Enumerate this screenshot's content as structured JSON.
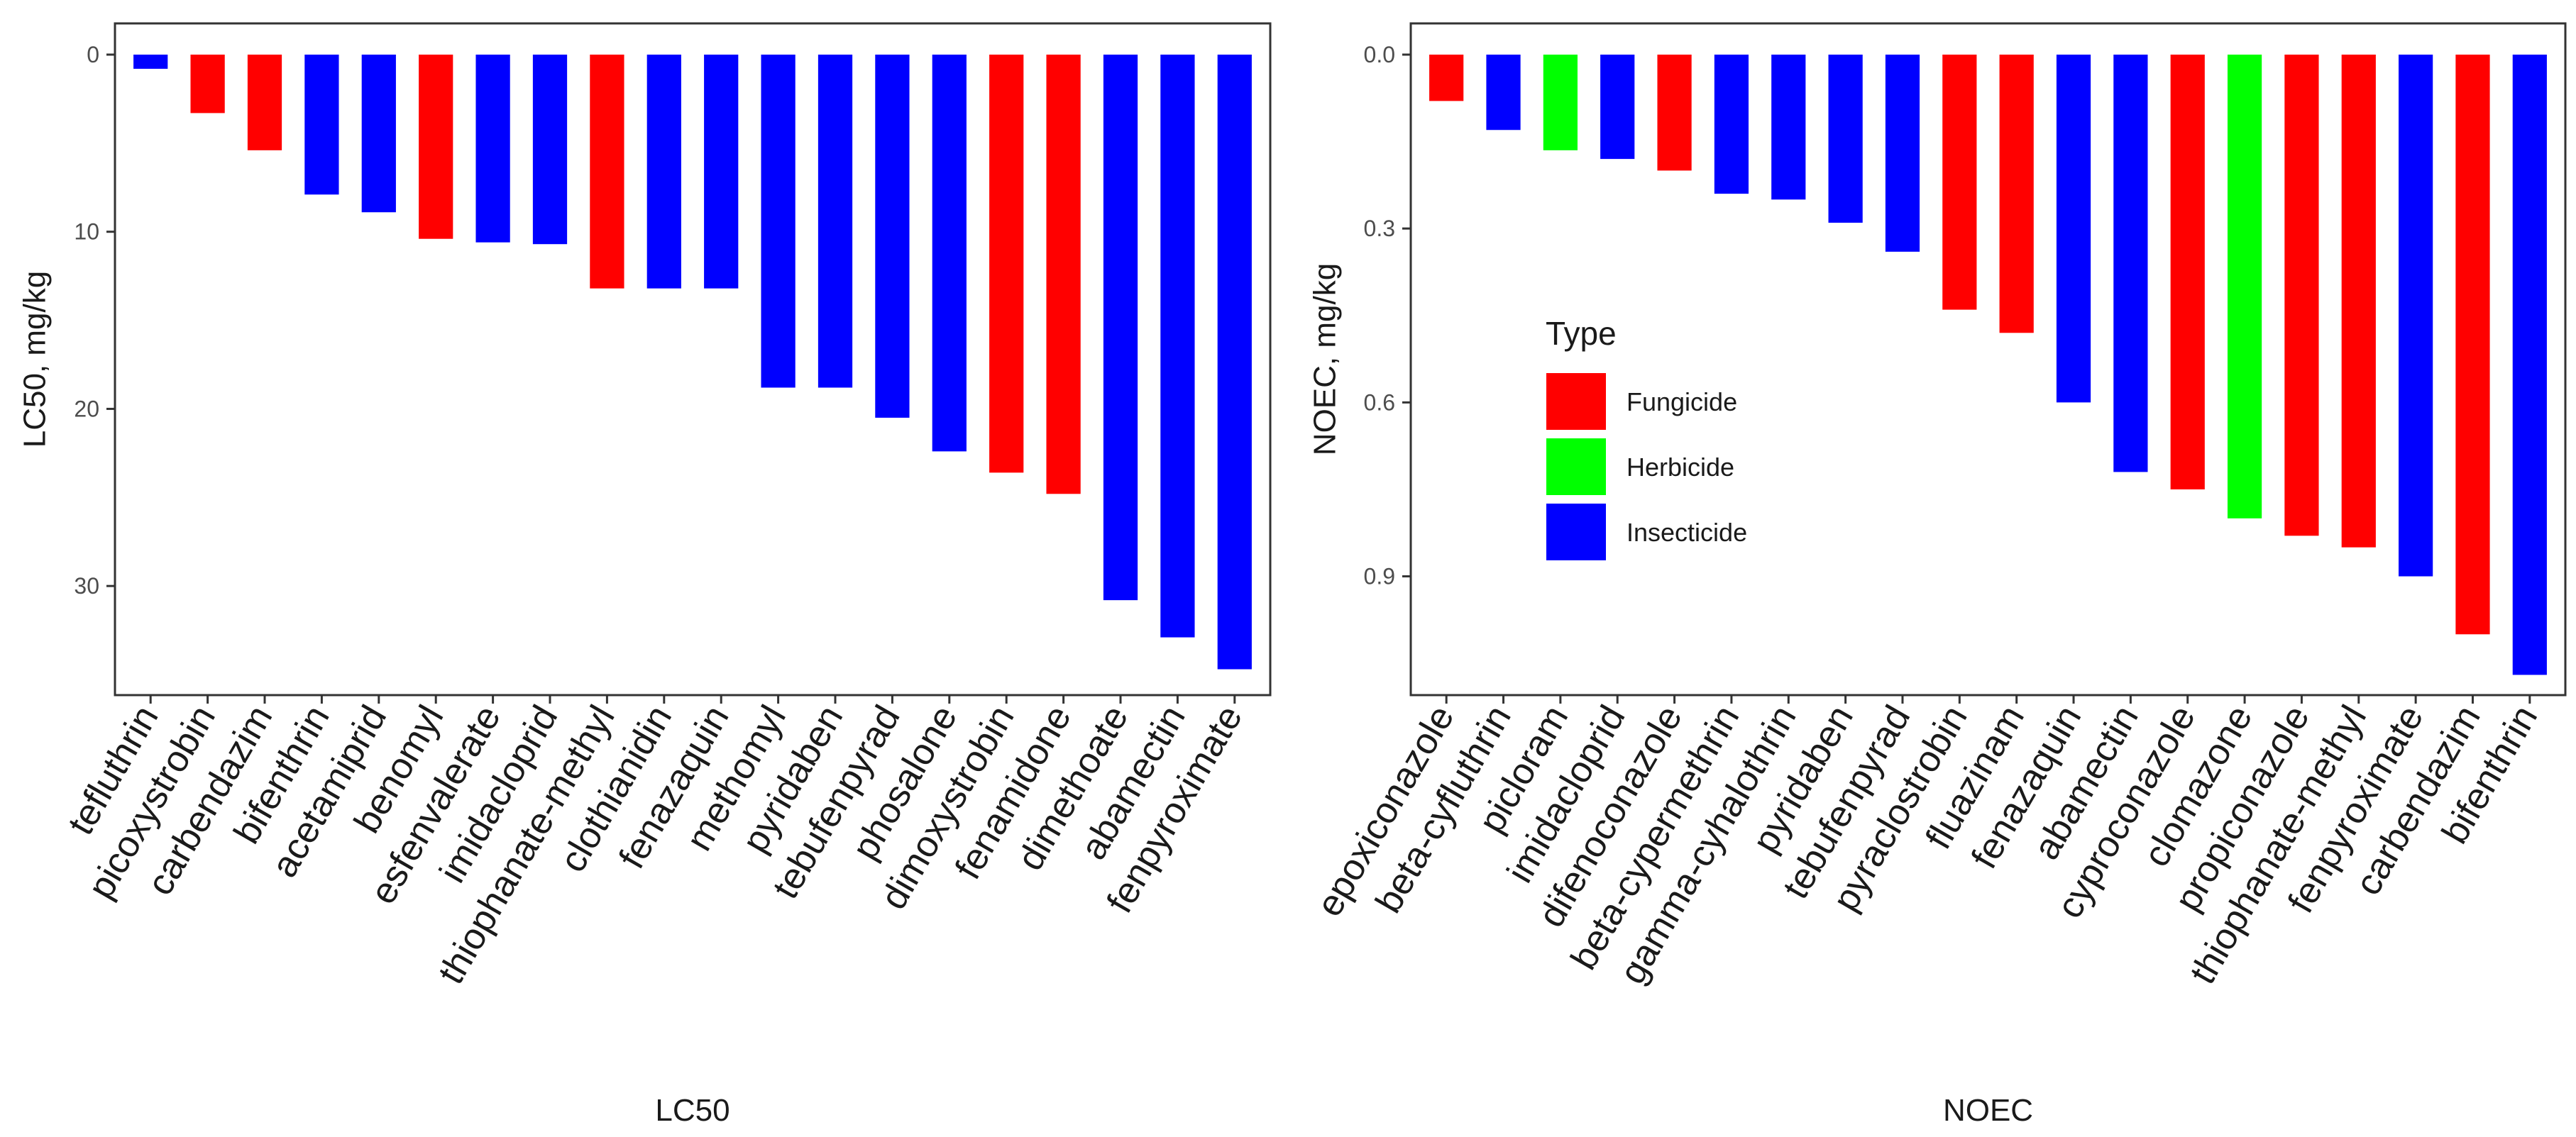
{
  "legend": {
    "title": "Type",
    "entries": [
      {
        "label": "Fungicide",
        "color": "#ff0000"
      },
      {
        "label": "Herbicide",
        "color": "#00ff00"
      },
      {
        "label": "Insecticide",
        "color": "#0000ff"
      }
    ]
  },
  "chart_data": [
    {
      "type": "bar",
      "title": "",
      "xlabel": "LC50",
      "ylabel": "LC50, mg/kg",
      "ylim": [
        0,
        36
      ],
      "y_reversed": true,
      "yticks": [
        0,
        10,
        20,
        30
      ],
      "ytick_labels": [
        "0",
        "10",
        "20",
        "30"
      ],
      "grid": false,
      "categories": [
        "tefluthrin",
        "picoxystrobin",
        "carbendazim",
        "bifenthrin",
        "acetamiprid",
        "benomyl",
        "esfenvalerate",
        "imidacloprid",
        "thiophanate-methyl",
        "clothianidin",
        "fenazaquin",
        "methomyl",
        "pyridaben",
        "tebufenpyrad",
        "phosalone",
        "dimoxystrobin",
        "fenamidone",
        "dimethoate",
        "abamectin",
        "fenpyroximate"
      ],
      "values": [
        0.8,
        3.3,
        5.4,
        7.9,
        8.9,
        10.4,
        10.6,
        10.7,
        13.2,
        13.2,
        13.2,
        18.8,
        18.8,
        20.5,
        22.4,
        23.6,
        24.8,
        30.8,
        32.9,
        34.7
      ],
      "types": [
        "Insecticide",
        "Fungicide",
        "Fungicide",
        "Insecticide",
        "Insecticide",
        "Fungicide",
        "Insecticide",
        "Insecticide",
        "Fungicide",
        "Insecticide",
        "Insecticide",
        "Insecticide",
        "Insecticide",
        "Insecticide",
        "Insecticide",
        "Fungicide",
        "Fungicide",
        "Insecticide",
        "Insecticide",
        "Insecticide"
      ]
    },
    {
      "type": "bar",
      "title": "",
      "xlabel": "NOEC",
      "ylabel": "NOEC, mg/kg",
      "ylim": [
        0,
        1.1
      ],
      "y_reversed": true,
      "yticks": [
        0,
        0.3,
        0.6,
        0.9
      ],
      "ytick_labels": [
        "0.0",
        "0.3",
        "0.6",
        "0.9"
      ],
      "grid": false,
      "legend_position": "center-left",
      "categories": [
        "epoxiconazole",
        "beta-cyfluthrin",
        "picloram",
        "imidacloprid",
        "difenoconazole",
        "beta-cypermethrin",
        "gamma-cyhalothrin",
        "pyridaben",
        "tebufenpyrad",
        "pyraclostrobin",
        "fluazinam",
        "fenazaquin",
        "abamectin",
        "cyproconazole",
        "clomazone",
        "propiconazole",
        "thiophanate-methyl",
        "fenpyroximate",
        "carbendazim",
        "bifenthrin"
      ],
      "values": [
        0.08,
        0.13,
        0.165,
        0.18,
        0.2,
        0.24,
        0.25,
        0.29,
        0.34,
        0.44,
        0.48,
        0.6,
        0.72,
        0.75,
        0.8,
        0.83,
        0.85,
        0.9,
        1.0,
        1.07
      ],
      "types": [
        "Fungicide",
        "Insecticide",
        "Herbicide",
        "Insecticide",
        "Fungicide",
        "Insecticide",
        "Insecticide",
        "Insecticide",
        "Insecticide",
        "Fungicide",
        "Fungicide",
        "Insecticide",
        "Insecticide",
        "Fungicide",
        "Herbicide",
        "Fungicide",
        "Fungicide",
        "Insecticide",
        "Fungicide",
        "Insecticide"
      ]
    }
  ]
}
